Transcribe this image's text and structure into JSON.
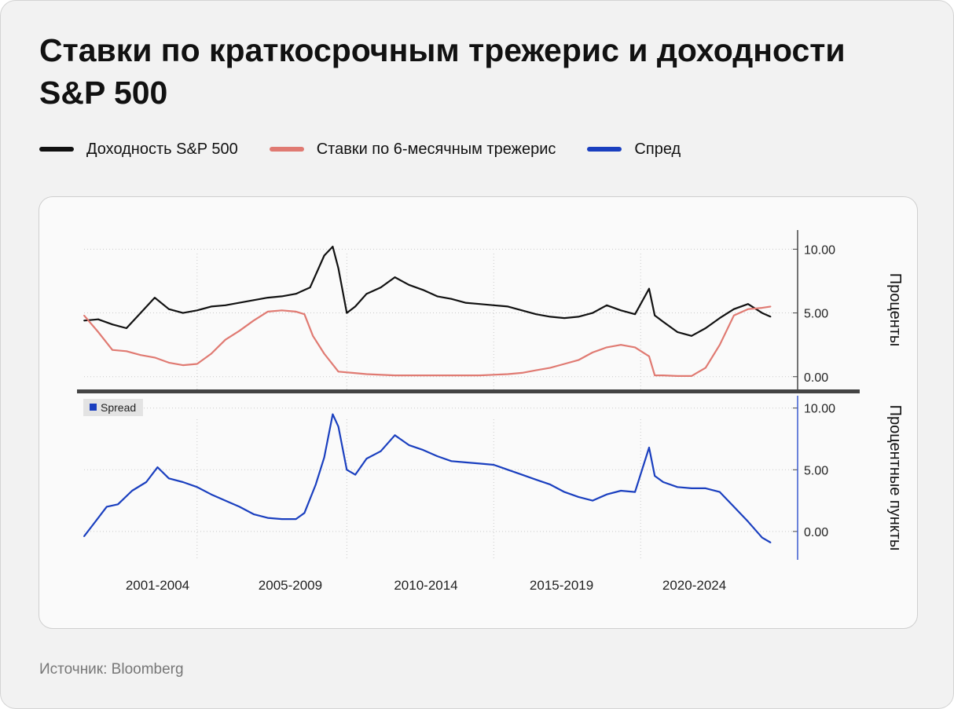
{
  "title": "Ставки по краткосрочным трежерис и доходности S&P 500",
  "legend": [
    {
      "label": "Доходность S&P 500",
      "color": "#111111"
    },
    {
      "label": "Ставки по 6-месячным трежерис",
      "color": "#e07a72"
    },
    {
      "label": "Спред",
      "color": "#1a3fbf"
    }
  ],
  "source": "Источник: Bloomberg",
  "chart_data": [
    {
      "type": "line",
      "ylabel": "Проценты",
      "ylim": [
        -1.0,
        11.5
      ],
      "yticks": [
        "10.00",
        "5.00",
        "0.00"
      ],
      "grid": true,
      "series": [
        {
          "name": "Доходность S&P 500",
          "color": "#111111",
          "x": [
            2000.0,
            2000.5,
            2001.0,
            2001.5,
            2002.0,
            2002.5,
            2003.0,
            2003.5,
            2004.0,
            2004.5,
            2005.0,
            2005.5,
            2006.0,
            2006.5,
            2007.0,
            2007.5,
            2008.0,
            2008.5,
            2008.8,
            2009.0,
            2009.3,
            2009.6,
            2010.0,
            2010.5,
            2011.0,
            2011.5,
            2012.0,
            2012.5,
            2013.0,
            2013.5,
            2014.0,
            2014.5,
            2015.0,
            2015.5,
            2016.0,
            2016.5,
            2017.0,
            2017.5,
            2018.0,
            2018.5,
            2019.0,
            2019.5,
            2020.0,
            2020.2,
            2020.5,
            2021.0,
            2021.5,
            2022.0,
            2022.5,
            2023.0,
            2023.5,
            2024.0,
            2024.3
          ],
          "y": [
            4.4,
            4.5,
            4.1,
            3.8,
            5.0,
            6.2,
            5.3,
            5.0,
            5.2,
            5.5,
            5.6,
            5.8,
            6.0,
            6.2,
            6.3,
            6.5,
            7.0,
            9.5,
            10.2,
            8.5,
            5.0,
            5.5,
            6.5,
            7.0,
            7.8,
            7.2,
            6.8,
            6.3,
            6.1,
            5.8,
            5.7,
            5.6,
            5.5,
            5.2,
            4.9,
            4.7,
            4.6,
            4.7,
            5.0,
            5.6,
            5.2,
            4.9,
            6.9,
            4.8,
            4.3,
            3.5,
            3.2,
            3.8,
            4.6,
            5.3,
            5.7,
            5.0,
            4.7
          ]
        },
        {
          "name": "Ставки по 6-месячным трежерис",
          "color": "#e07a72",
          "x": [
            2000.0,
            2000.5,
            2001.0,
            2001.5,
            2002.0,
            2002.5,
            2003.0,
            2003.5,
            2004.0,
            2004.5,
            2005.0,
            2005.5,
            2006.0,
            2006.5,
            2007.0,
            2007.5,
            2007.8,
            2008.1,
            2008.5,
            2009.0,
            2009.5,
            2010.0,
            2011.0,
            2012.0,
            2013.0,
            2014.0,
            2015.0,
            2015.5,
            2016.0,
            2016.5,
            2017.0,
            2017.5,
            2018.0,
            2018.5,
            2019.0,
            2019.5,
            2020.0,
            2020.2,
            2020.5,
            2021.0,
            2021.5,
            2022.0,
            2022.5,
            2023.0,
            2023.5,
            2024.0,
            2024.3
          ],
          "y": [
            4.8,
            3.5,
            2.1,
            2.0,
            1.7,
            1.5,
            1.1,
            0.9,
            1.0,
            1.8,
            2.9,
            3.6,
            4.4,
            5.1,
            5.2,
            5.1,
            4.9,
            3.2,
            1.8,
            0.4,
            0.3,
            0.2,
            0.1,
            0.1,
            0.1,
            0.1,
            0.2,
            0.3,
            0.5,
            0.7,
            1.0,
            1.3,
            1.9,
            2.3,
            2.5,
            2.3,
            1.6,
            0.1,
            0.1,
            0.05,
            0.05,
            0.7,
            2.5,
            4.8,
            5.3,
            5.4,
            5.5
          ]
        }
      ]
    },
    {
      "type": "line",
      "ylabel": "Процентные пункты",
      "ylim": [
        -2.3,
        11.0
      ],
      "yticks": [
        "10.00",
        "5.00",
        "0.00"
      ],
      "legend_label": "Spread",
      "grid": true,
      "series": [
        {
          "name": "Spread",
          "color": "#1a3fbf",
          "x": [
            2000.0,
            2000.3,
            2000.8,
            2001.2,
            2001.7,
            2002.2,
            2002.6,
            2003.0,
            2003.5,
            2004.0,
            2004.5,
            2005.0,
            2005.5,
            2006.0,
            2006.5,
            2007.0,
            2007.5,
            2007.8,
            2008.2,
            2008.5,
            2008.8,
            2009.0,
            2009.3,
            2009.6,
            2010.0,
            2010.5,
            2011.0,
            2011.5,
            2012.0,
            2012.5,
            2013.0,
            2013.5,
            2014.0,
            2014.5,
            2015.0,
            2015.5,
            2016.0,
            2016.5,
            2017.0,
            2017.5,
            2018.0,
            2018.5,
            2019.0,
            2019.5,
            2020.0,
            2020.2,
            2020.5,
            2021.0,
            2021.5,
            2022.0,
            2022.5,
            2023.0,
            2023.5,
            2024.0,
            2024.3
          ],
          "y": [
            -0.4,
            0.5,
            2.0,
            2.2,
            3.3,
            4.0,
            5.2,
            4.3,
            4.0,
            3.6,
            3.0,
            2.5,
            2.0,
            1.4,
            1.1,
            1.0,
            1.0,
            1.5,
            3.8,
            6.0,
            9.5,
            8.5,
            5.0,
            4.6,
            5.9,
            6.5,
            7.8,
            7.0,
            6.6,
            6.1,
            5.7,
            5.6,
            5.5,
            5.4,
            5.0,
            4.6,
            4.2,
            3.8,
            3.2,
            2.8,
            2.5,
            3.0,
            3.3,
            3.2,
            6.8,
            4.5,
            4.0,
            3.6,
            3.5,
            3.5,
            3.2,
            2.0,
            0.8,
            -0.5,
            -0.9
          ]
        }
      ]
    }
  ],
  "x_tick_labels": [
    "2001-2004",
    "2005-2009",
    "2010-2014",
    "2015-2019",
    "2020-2024"
  ]
}
